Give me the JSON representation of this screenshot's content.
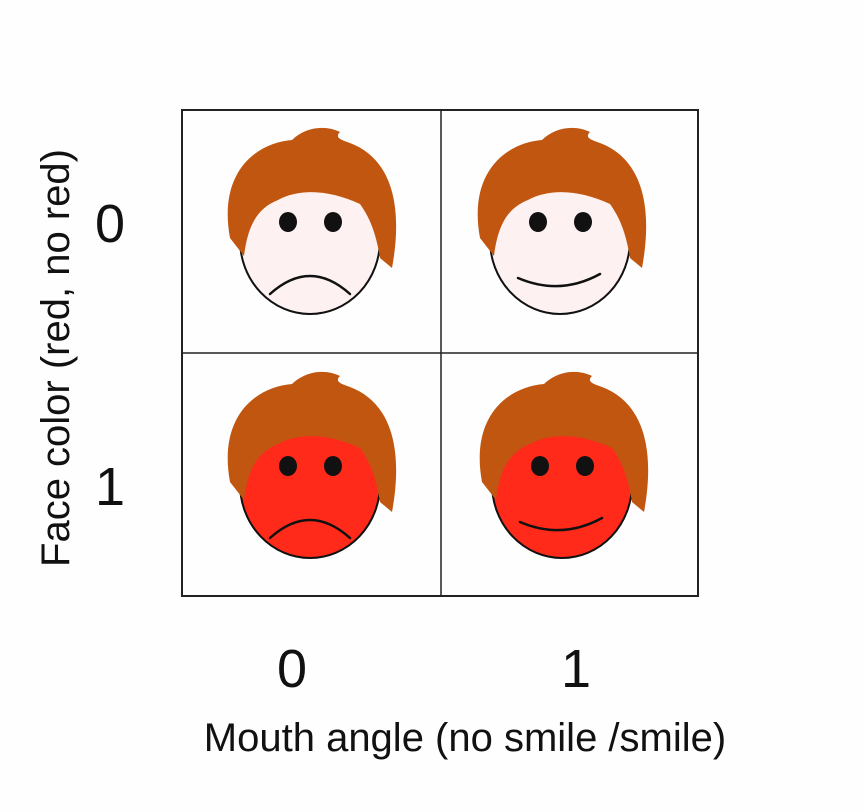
{
  "axes": {
    "x_label": "Mouth angle (no smile /smile)",
    "y_label": "Face color (red, no red)",
    "x_ticks": [
      "0",
      "1"
    ],
    "y_ticks": [
      "0",
      "1"
    ]
  },
  "colors": {
    "hair": "#c0560f",
    "face_plain": "#fdf1f1",
    "face_red": "#ff2a1a",
    "outline": "#111111",
    "grid": "#222222"
  },
  "faces": [
    {
      "row": 0,
      "col": 0,
      "face_color": "plain",
      "mouth": "frown"
    },
    {
      "row": 0,
      "col": 1,
      "face_color": "plain",
      "mouth": "smile"
    },
    {
      "row": 1,
      "col": 0,
      "face_color": "red",
      "mouth": "frown"
    },
    {
      "row": 1,
      "col": 1,
      "face_color": "red",
      "mouth": "smile"
    }
  ]
}
